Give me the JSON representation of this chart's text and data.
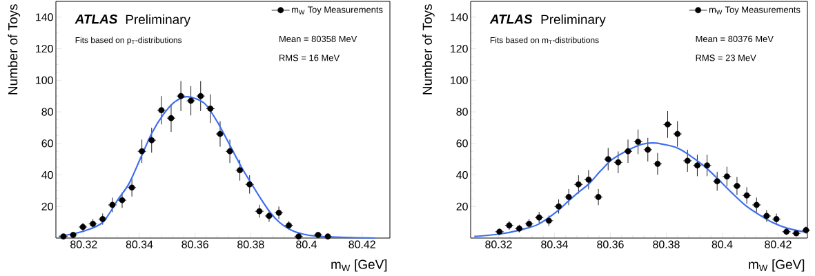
{
  "chart_data": [
    {
      "type": "scatter",
      "subtitle": "Fits based on p$_{T}$-distributions",
      "xlabel": "m$_{W}$ [GeV]",
      "ylabel": "Number of Toys",
      "annotations": [
        "ATLAS",
        "Preliminary",
        "Mean = 80358 MeV",
        "RMS  = 16 MeV"
      ],
      "xlim": [
        80.31,
        80.43
      ],
      "ylim": [
        0,
        150
      ],
      "xticks": [
        80.32,
        80.34,
        80.36,
        80.38,
        80.4,
        80.42
      ],
      "yticks": [
        20,
        40,
        60,
        80,
        100,
        120,
        140
      ],
      "legend": "top right",
      "series": [
        {
          "name": "m$_{W}$ Toy Measurements",
          "marker": "circle",
          "color": "#000000",
          "x": [
            80.3127,
            80.3162,
            80.3197,
            80.3233,
            80.3268,
            80.3303,
            80.3338,
            80.3373,
            80.3409,
            80.3444,
            80.3479,
            80.3514,
            80.3549,
            80.3585,
            80.362,
            80.3655,
            80.369,
            80.3725,
            80.3761,
            80.3796,
            80.3831,
            80.3866,
            80.3901,
            80.3937,
            80.3972,
            80.4007,
            80.4042,
            80.4077
          ],
          "values": [
            1,
            2,
            7,
            9,
            12,
            21,
            24,
            32,
            55,
            62,
            81,
            76,
            90,
            87,
            90,
            82,
            66,
            55,
            43,
            34,
            17,
            14,
            16,
            8,
            1,
            null,
            2,
            1
          ],
          "errors": [
            1,
            1.4,
            2.6,
            3,
            3.5,
            4.6,
            4.9,
            5.7,
            7.4,
            7.9,
            9,
            8.7,
            9.5,
            9.3,
            9.5,
            9.1,
            8.1,
            7.4,
            6.6,
            5.8,
            4.1,
            3.7,
            4,
            2.8,
            1,
            null,
            1.4,
            1
          ],
          "xerrors": [
            0.0015,
            0.0015,
            0.0015,
            0.0015,
            0.0015,
            0.0015,
            0.0015,
            0.0015,
            0.0015,
            0.0015,
            0.0015,
            0.0015,
            0.0015,
            0.0015,
            0.0015,
            0.0015,
            0.0015,
            0.0015,
            0.0015,
            0.0015,
            0.0015,
            0.0015,
            0.0015,
            0.0015,
            0.0015,
            null,
            0.0015,
            0.0015
          ]
        },
        {
          "type": "line",
          "color": "#3d6ef0",
          "x": [
            80.311,
            80.32,
            80.3268,
            80.3323,
            80.3363,
            80.3404,
            80.3445,
            80.3486,
            80.3527,
            80.3572,
            80.3633,
            80.3682,
            80.3765,
            80.38,
            80.3836,
            80.387,
            80.3906,
            80.3944,
            80.3977,
            80.4044,
            80.4246
          ],
          "values": [
            0.9,
            4.4,
            9.9,
            24.4,
            34.6,
            50.6,
            66.6,
            78.3,
            86.3,
            89.6,
            85.5,
            73,
            45.5,
            35.2,
            25,
            16.2,
            9.5,
            5.1,
            3,
            1,
            0
          ]
        }
      ]
    },
    {
      "type": "scatter",
      "subtitle": "Fits based on m$_{T}$-distributions",
      "xlabel": "m$_{W}$ [GeV]",
      "ylabel": "Number of Toys",
      "annotations": [
        "ATLAS",
        "Preliminary",
        "Mean = 80376 MeV",
        "RMS  = 23 MeV"
      ],
      "xlim": [
        80.31,
        80.4305
      ],
      "ylim": [
        0,
        150
      ],
      "xticks": [
        80.32,
        80.34,
        80.36,
        80.38,
        80.4,
        80.42
      ],
      "yticks": [
        20,
        40,
        60,
        80,
        100,
        120,
        140
      ],
      "legend": "top right",
      "series": [
        {
          "name": "m$_{W}$ Toy Measurements",
          "marker": "circle",
          "color": "#000000",
          "x": [
            80.3203,
            80.3238,
            80.3274,
            80.3309,
            80.3345,
            80.338,
            80.3415,
            80.3451,
            80.3486,
            80.3522,
            80.3557,
            80.3592,
            80.3628,
            80.3663,
            80.3699,
            80.3734,
            80.3769,
            80.3805,
            80.384,
            80.3876,
            80.3911,
            80.3946,
            80.3982,
            80.4017,
            80.4053,
            80.4088,
            80.4123,
            80.4159,
            80.4194,
            80.423,
            80.4265,
            80.43
          ],
          "values": [
            4,
            8,
            6,
            9,
            13,
            11,
            20,
            26,
            34,
            37,
            26,
            50,
            48,
            55,
            61,
            56,
            47,
            72,
            66,
            49,
            46,
            46,
            36,
            39,
            33,
            27,
            21,
            14,
            12,
            4,
            3,
            5
          ],
          "errors": [
            2,
            2.8,
            2.4,
            3,
            3.6,
            3.3,
            4.5,
            5.1,
            5.8,
            6.1,
            5.1,
            7.1,
            6.9,
            7.4,
            7.8,
            7.5,
            6.9,
            8.5,
            8.1,
            7,
            6.8,
            6.8,
            6,
            6.2,
            5.7,
            5.2,
            4.6,
            3.7,
            3.5,
            2,
            1.7,
            2.2
          ],
          "xerrors": [
            0.0015,
            0.0015,
            0.0015,
            0.0015,
            0.0015,
            0.0015,
            0.0015,
            0.0015,
            0.0015,
            0.0015,
            0.0015,
            0.0015,
            0.0015,
            0.0015,
            0.0015,
            0.0015,
            0.0015,
            0.0015,
            0.0015,
            0.0015,
            0.0015,
            0.0015,
            0.0015,
            0.0015,
            0.0015,
            0.0015,
            0.0015,
            0.0015,
            0.0015,
            0.0015,
            0.0015,
            0.0015
          ]
        },
        {
          "type": "line",
          "color": "#3d6ef0",
          "x": [
            80.3113,
            80.3203,
            80.3277,
            80.3343,
            80.3409,
            80.345,
            80.3483,
            80.3524,
            80.3565,
            80.3607,
            80.3664,
            80.3714,
            80.3763,
            80.3837,
            80.3886,
            80.3936,
            80.3985,
            80.4035,
            80.4084,
            80.4133,
            80.4183,
            80.4232,
            80.4298
          ],
          "values": [
            1,
            2.5,
            5.1,
            8.8,
            16.9,
            23.5,
            28.6,
            34.5,
            42.6,
            49.9,
            55.8,
            59.5,
            60.2,
            57.3,
            52.1,
            45.5,
            37.4,
            28.6,
            20.6,
            14.7,
            9.6,
            6.3,
            3.7
          ]
        }
      ]
    }
  ]
}
